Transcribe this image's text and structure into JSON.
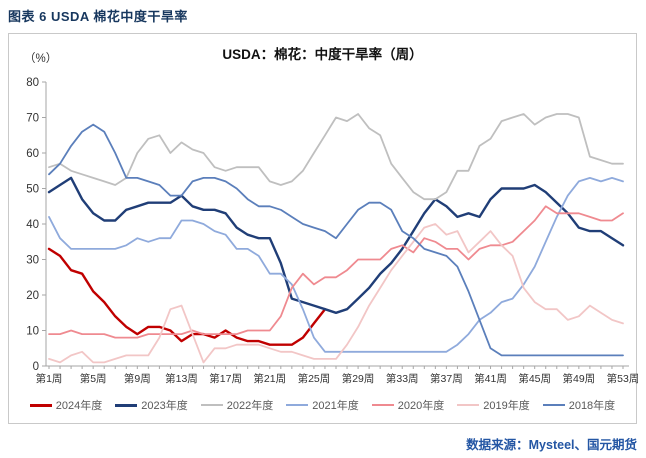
{
  "header": {
    "title": "图表 6 USDA 棉花中度干旱率"
  },
  "chart": {
    "title": "USDA：棉花：中度干旱率（周）",
    "unit_label": "（%）"
  },
  "footer": {
    "source": "数据来源：Mysteel、国元期货"
  },
  "chart_data": {
    "type": "line",
    "title": "USDA：棉花：中度干旱率（周）",
    "xlabel": "",
    "ylabel": "%",
    "ylim": [
      0,
      80
    ],
    "y_ticks": [
      0,
      10,
      20,
      30,
      40,
      50,
      60,
      70,
      80
    ],
    "x_range_weeks": [
      1,
      53
    ],
    "x_tick_label_step": 4,
    "x_tick_labels": [
      "第1周",
      "第5周",
      "第9周",
      "第13周",
      "第17周",
      "第21周",
      "第25周",
      "第29周",
      "第33周",
      "第37周",
      "第41周",
      "第45周",
      "第49周",
      "第53周"
    ],
    "grid": false,
    "legend_position": "bottom",
    "series": [
      {
        "name": "2024年度",
        "color": "#c00000",
        "emphasis": true,
        "values": [
          33,
          31,
          27,
          26,
          21,
          18,
          14,
          11,
          9,
          11,
          11,
          10,
          7,
          9,
          9,
          8,
          10,
          8,
          7,
          7,
          6,
          6,
          6,
          8,
          12,
          16,
          null,
          null,
          null,
          null,
          null,
          null,
          null,
          null,
          null,
          null,
          null,
          null,
          null,
          null,
          null,
          null,
          null,
          null,
          null,
          null,
          null,
          null,
          null,
          null,
          null,
          null,
          null
        ]
      },
      {
        "name": "2023年度",
        "color": "#203e77",
        "emphasis": true,
        "values": [
          49,
          51,
          53,
          47,
          43,
          41,
          41,
          44,
          45,
          46,
          46,
          46,
          48,
          45,
          44,
          44,
          43,
          39,
          37,
          36,
          36,
          29,
          19,
          18,
          17,
          16,
          15,
          16,
          19,
          22,
          26,
          29,
          33,
          38,
          43,
          47,
          45,
          42,
          43,
          42,
          47,
          50,
          50,
          50,
          51,
          49,
          46,
          43,
          39,
          38,
          38,
          36,
          34
        ]
      },
      {
        "name": "2022年度",
        "color": "#bfbfbf",
        "emphasis": false,
        "values": [
          56,
          57,
          55,
          54,
          53,
          52,
          51,
          53,
          60,
          64,
          65,
          60,
          63,
          61,
          60,
          56,
          55,
          56,
          56,
          56,
          52,
          51,
          52,
          55,
          60,
          65,
          70,
          69,
          71,
          67,
          65,
          57,
          53,
          49,
          47,
          47,
          49,
          55,
          55,
          62,
          64,
          69,
          70,
          71,
          68,
          70,
          71,
          71,
          70,
          59,
          58,
          57,
          57
        ]
      },
      {
        "name": "2021年度",
        "color": "#8faadc",
        "emphasis": false,
        "values": [
          42,
          36,
          33,
          33,
          33,
          33,
          33,
          34,
          36,
          35,
          36,
          36,
          41,
          41,
          40,
          38,
          37,
          33,
          33,
          31,
          26,
          26,
          23,
          16,
          8,
          4,
          4,
          4,
          4,
          4,
          4,
          4,
          4,
          4,
          4,
          4,
          4,
          6,
          9,
          13,
          15,
          18,
          19,
          23,
          28,
          35,
          42,
          48,
          52,
          53,
          52,
          53,
          52
        ]
      },
      {
        "name": "2020年度",
        "color": "#ef8a90",
        "emphasis": false,
        "values": [
          9,
          9,
          10,
          9,
          9,
          9,
          8,
          8,
          8,
          9,
          9,
          9,
          9,
          10,
          9,
          9,
          9,
          9,
          10,
          10,
          10,
          14,
          22,
          26,
          23,
          25,
          25,
          27,
          30,
          30,
          30,
          33,
          34,
          32,
          36,
          35,
          33,
          33,
          30,
          33,
          34,
          34,
          35,
          38,
          41,
          45,
          43,
          43,
          43,
          42,
          41,
          41,
          43
        ]
      },
      {
        "name": "2019年度",
        "color": "#f2c6c6",
        "emphasis": false,
        "values": [
          2,
          1,
          3,
          4,
          1,
          1,
          2,
          3,
          3,
          3,
          8,
          16,
          17,
          9,
          1,
          5,
          5,
          6,
          6,
          6,
          5,
          4,
          4,
          3,
          2,
          2,
          2,
          6,
          11,
          17,
          22,
          27,
          31,
          35,
          39,
          40,
          37,
          38,
          32,
          35,
          38,
          34,
          31,
          22,
          18,
          16,
          16,
          13,
          14,
          17,
          15,
          13,
          12
        ]
      },
      {
        "name": "2018年度",
        "color": "#5b7fbb",
        "emphasis": false,
        "values": [
          54,
          57,
          62,
          66,
          68,
          66,
          60,
          53,
          53,
          52,
          51,
          48,
          48,
          52,
          53,
          53,
          52,
          50,
          47,
          45,
          45,
          44,
          42,
          40,
          39,
          38,
          36,
          40,
          44,
          46,
          46,
          44,
          38,
          36,
          33,
          32,
          31,
          28,
          21,
          13,
          5,
          3,
          3,
          3,
          3,
          3,
          3,
          3,
          3,
          3,
          3,
          3,
          3
        ]
      }
    ]
  }
}
